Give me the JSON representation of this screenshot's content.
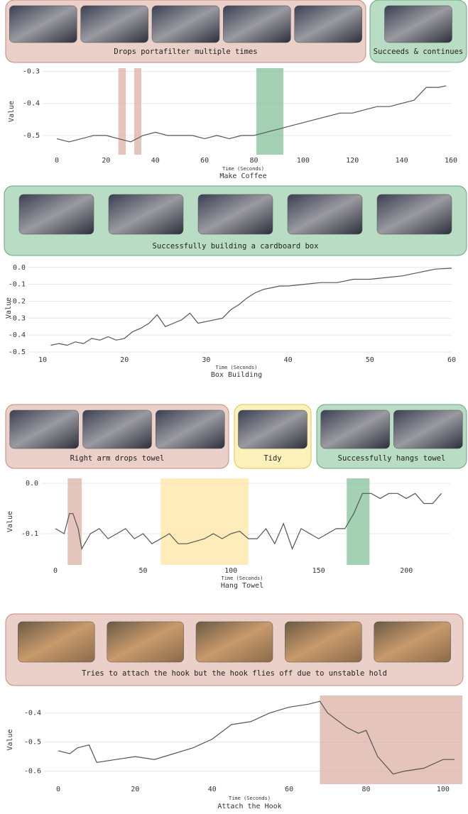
{
  "chart_data": [
    {
      "type": "line",
      "title": "Make Coffee",
      "x_label": "Time (Seconds)",
      "y_label": "Value",
      "annotations": [
        {
          "text": "Drops portafilter multiple times",
          "color": "#ebd0c9"
        },
        {
          "text": "Succeeds & continues",
          "color": "#b9dcc4"
        }
      ],
      "highlights": [
        {
          "x0": 25,
          "x1": 28,
          "color": "#dcb0a6"
        },
        {
          "x0": 31.4,
          "x1": 34.3,
          "color": "#dcb0a6"
        },
        {
          "x0": 81,
          "x1": 92,
          "color": "#86c19a"
        }
      ],
      "x": [
        0,
        5,
        10,
        15,
        20,
        25,
        30,
        35,
        40,
        45,
        50,
        55,
        60,
        65,
        70,
        75,
        80,
        85,
        90,
        95,
        100,
        105,
        110,
        115,
        120,
        125,
        130,
        135,
        140,
        145,
        150,
        155,
        158
      ],
      "values": [
        -0.51,
        -0.52,
        -0.51,
        -0.5,
        -0.5,
        -0.51,
        -0.52,
        -0.5,
        -0.49,
        -0.5,
        -0.5,
        -0.5,
        -0.51,
        -0.5,
        -0.51,
        -0.5,
        -0.5,
        -0.49,
        -0.48,
        -0.47,
        -0.46,
        -0.45,
        -0.44,
        -0.43,
        -0.43,
        -0.42,
        -0.41,
        -0.41,
        -0.4,
        -0.39,
        -0.35,
        -0.35,
        -0.345
      ],
      "color": "#555555",
      "xlim": [
        0,
        160
      ],
      "ylim": [
        -0.56,
        -0.29
      ],
      "xticks": [
        0,
        20,
        40,
        60,
        80,
        100,
        120,
        140,
        160
      ],
      "yticks": [
        -0.3,
        -0.4,
        -0.5
      ],
      "grid": true
    },
    {
      "type": "line",
      "title": "Box Building",
      "x_label": "Time (Seconds)",
      "y_label": "Value",
      "annotations": [
        {
          "text": "Successfully building a cardboard box",
          "color": "#b9dcc4"
        }
      ],
      "highlights": [],
      "x": [
        11,
        12,
        13,
        14,
        15,
        16,
        17,
        18,
        19,
        20,
        21,
        22,
        23,
        24,
        25,
        26,
        27,
        28,
        29,
        30,
        31,
        32,
        33,
        34,
        35,
        36,
        37,
        38,
        39,
        40,
        42,
        44,
        46,
        48,
        50,
        52,
        54,
        56,
        58,
        60
      ],
      "values": [
        -0.46,
        -0.45,
        -0.46,
        -0.44,
        -0.45,
        -0.42,
        -0.43,
        -0.41,
        -0.43,
        -0.42,
        -0.38,
        -0.36,
        -0.33,
        -0.28,
        -0.35,
        -0.33,
        -0.31,
        -0.27,
        -0.33,
        -0.32,
        -0.31,
        -0.3,
        -0.25,
        -0.22,
        -0.18,
        -0.15,
        -0.13,
        -0.12,
        -0.11,
        -0.11,
        -0.1,
        -0.09,
        -0.09,
        -0.07,
        -0.07,
        -0.06,
        -0.05,
        -0.03,
        -0.01,
        -0.005
      ],
      "color": "#555555",
      "xlim": [
        10,
        60
      ],
      "ylim": [
        -0.5,
        0.02
      ],
      "xticks": [
        10,
        20,
        30,
        40,
        50,
        60
      ],
      "yticks": [
        {
          "value": 0,
          "label": "0.0"
        },
        -0.1,
        -0.2,
        -0.3,
        -0.4,
        -0.5
      ],
      "grid": true
    },
    {
      "type": "line",
      "title": "Hang Towel",
      "x_label": "Time (Seconds)",
      "y_label": "Value",
      "annotations": [
        {
          "text": "Right arm drops towel",
          "color": "#ebd0c9"
        },
        {
          "text": "Tidy",
          "color": "#fcf0bb"
        },
        {
          "text": "Successfully hangs towel",
          "color": "#b9dcc4"
        }
      ],
      "highlights": [
        {
          "x0": 7,
          "x1": 15,
          "color": "#dcb0a6"
        },
        {
          "x0": 60,
          "x1": 110,
          "color": "#fde7a3"
        },
        {
          "x0": 166,
          "x1": 179,
          "color": "#86c19a"
        }
      ],
      "x": [
        0,
        5,
        8,
        10,
        13,
        15,
        20,
        25,
        30,
        35,
        40,
        45,
        50,
        55,
        60,
        65,
        70,
        75,
        80,
        85,
        90,
        95,
        100,
        105,
        110,
        115,
        120,
        125,
        130,
        135,
        140,
        145,
        150,
        155,
        160,
        165,
        170,
        175,
        180,
        185,
        190,
        195,
        200,
        205,
        210,
        215,
        220
      ],
      "values": [
        -0.09,
        -0.1,
        -0.06,
        -0.06,
        -0.09,
        -0.13,
        -0.1,
        -0.09,
        -0.11,
        -0.1,
        -0.09,
        -0.11,
        -0.1,
        -0.12,
        -0.11,
        -0.1,
        -0.12,
        -0.12,
        -0.115,
        -0.11,
        -0.1,
        -0.11,
        -0.1,
        -0.095,
        -0.11,
        -0.11,
        -0.09,
        -0.12,
        -0.08,
        -0.13,
        -0.09,
        -0.1,
        -0.11,
        -0.1,
        -0.09,
        -0.09,
        -0.06,
        -0.02,
        -0.02,
        -0.03,
        -0.02,
        -0.02,
        -0.03,
        -0.02,
        -0.04,
        -0.04,
        -0.02
      ],
      "color": "#555555",
      "xlim": [
        0,
        225
      ],
      "ylim": [
        -0.162,
        0.01
      ],
      "xticks": [
        0,
        50,
        100,
        150,
        200
      ],
      "yticks": [
        {
          "value": 0,
          "label": "0.0"
        },
        -0.1
      ],
      "grid": true
    },
    {
      "type": "line",
      "title": "Attach the Hook",
      "x_label": "Time (Seconds)",
      "y_label": "Value",
      "annotations": [
        {
          "text": "Tries to attach the hook but the hook flies off due to unstable hold",
          "color": "#ebd0c9"
        }
      ],
      "highlights": [
        {
          "x0": 68,
          "x1": 105,
          "color": "#dcb0a6"
        }
      ],
      "x": [
        0,
        3,
        5,
        8,
        10,
        15,
        20,
        25,
        30,
        35,
        40,
        45,
        50,
        55,
        60,
        65,
        68,
        70,
        75,
        78,
        80,
        83,
        87,
        90,
        95,
        100,
        103
      ],
      "values": [
        -0.53,
        -0.54,
        -0.52,
        -0.51,
        -0.57,
        -0.56,
        -0.55,
        -0.56,
        -0.54,
        -0.52,
        -0.49,
        -0.44,
        -0.43,
        -0.4,
        -0.38,
        -0.37,
        -0.36,
        -0.4,
        -0.45,
        -0.47,
        -0.46,
        -0.55,
        -0.61,
        -0.6,
        -0.59,
        -0.56,
        -0.56
      ],
      "color": "#555555",
      "xlim": [
        0,
        105
      ],
      "ylim": [
        -0.645,
        -0.34
      ],
      "xticks": [
        0,
        20,
        40,
        60,
        80,
        100
      ],
      "yticks": [
        -0.4,
        -0.5,
        -0.6
      ],
      "grid": true
    }
  ]
}
